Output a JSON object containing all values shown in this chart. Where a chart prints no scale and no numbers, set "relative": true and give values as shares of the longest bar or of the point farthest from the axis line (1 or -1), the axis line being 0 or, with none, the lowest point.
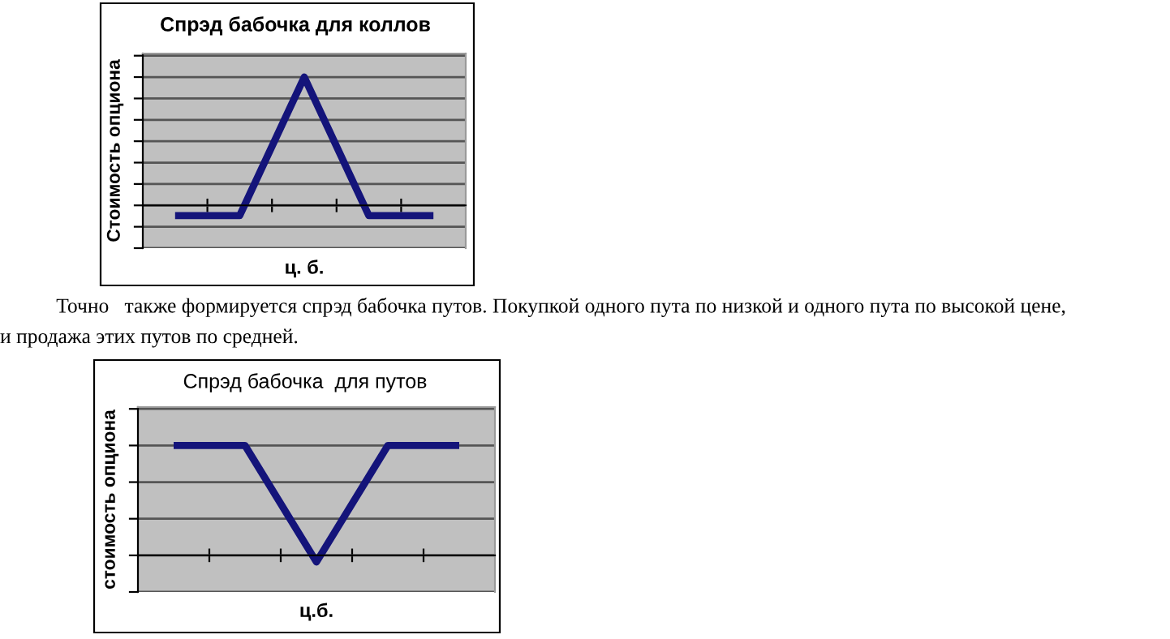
{
  "chart_data": [
    {
      "type": "line",
      "title": "Спрэд бабочка для коллов",
      "xlabel": "ц. б.",
      "ylabel": "Стоимость опциона",
      "categories": [
        null,
        null,
        null,
        null,
        null
      ],
      "relative": true,
      "series": [
        {
          "color": "#14147a",
          "values": [
            -0.08,
            -0.08,
            1,
            -0.08,
            -0.08
          ]
        }
      ],
      "grid": "y",
      "legend": false,
      "marker": "none",
      "line_style": "solid"
    },
    {
      "type": "other",
      "annotations": [
        "Точно   также формируется спрэд бабочка путов. Покупкой одного пута по низкой и одного пута по высокой цене,",
        "и продажа этих путов по средней."
      ]
    },
    {
      "type": "line",
      "title": "Спрэд бабочка  для путов",
      "xlabel": "ц.б.",
      "ylabel": "стоимость опциона",
      "categories": [
        null,
        null,
        null,
        null,
        null
      ],
      "relative": true,
      "series": [
        {
          "color": "#14147a",
          "values": [
            1,
            1,
            -0.06,
            1,
            1
          ]
        }
      ],
      "grid": "y",
      "legend": false,
      "marker": "none",
      "line_style": "solid"
    }
  ]
}
